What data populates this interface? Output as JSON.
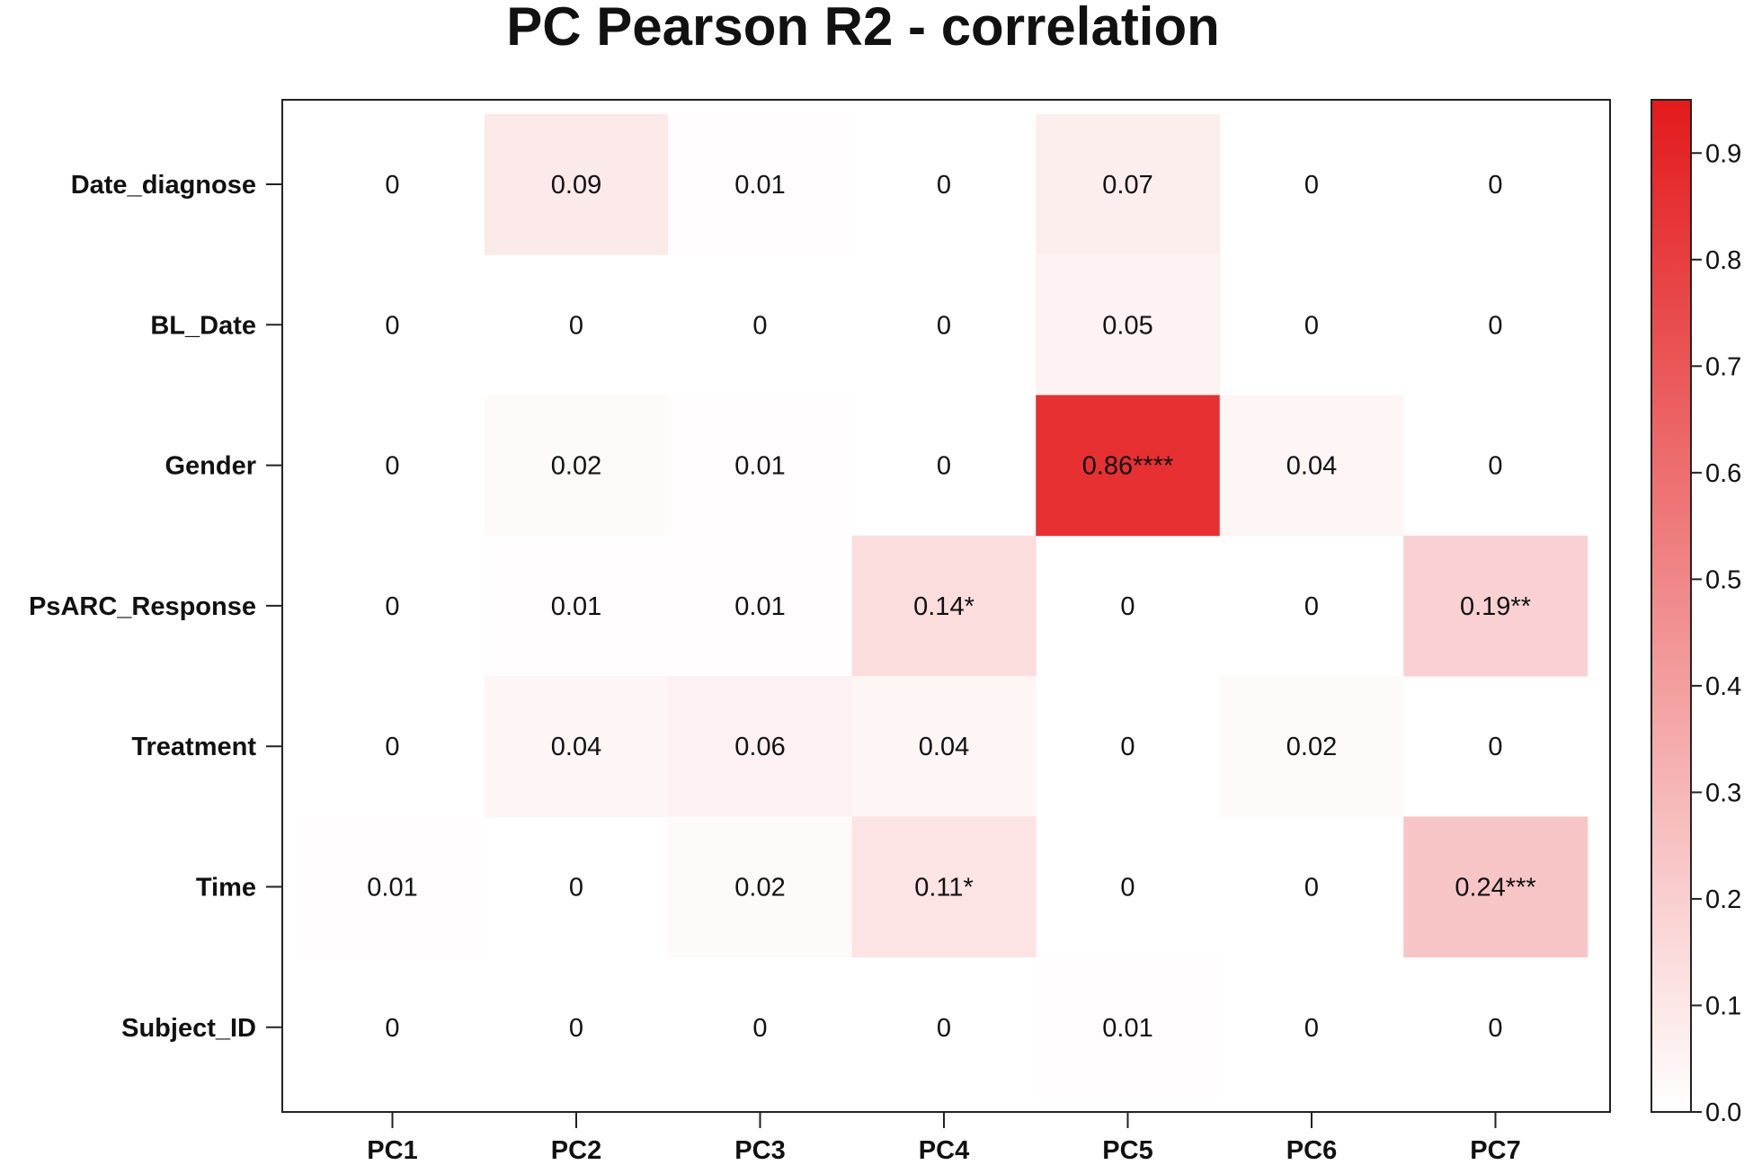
{
  "chart_data": {
    "type": "heatmap",
    "title": "PC Pearson R2 - correlation",
    "columns": [
      "PC1",
      "PC2",
      "PC3",
      "PC4",
      "PC5",
      "PC6",
      "PC7"
    ],
    "rows": [
      "Date_diagnose",
      "BL_Date",
      "Gender",
      "PsARC_Response",
      "Treatment",
      "Time",
      "Subject_ID"
    ],
    "values": [
      [
        0,
        0.09,
        0.01,
        0,
        0.07,
        0,
        0
      ],
      [
        0,
        0,
        0,
        0,
        0.05,
        0,
        0
      ],
      [
        0,
        0.02,
        0.01,
        0,
        0.86,
        0.04,
        0
      ],
      [
        0,
        0.01,
        0.01,
        0.14,
        0,
        0,
        0.19
      ],
      [
        0,
        0.04,
        0.06,
        0.04,
        0,
        0.02,
        0
      ],
      [
        0.01,
        0,
        0.02,
        0.11,
        0,
        0,
        0.24
      ],
      [
        0,
        0,
        0,
        0,
        0.01,
        0,
        0
      ]
    ],
    "labels": [
      [
        "0",
        "0.09",
        "0.01",
        "0",
        "0.07",
        "0",
        "0"
      ],
      [
        "0",
        "0",
        "0",
        "0",
        "0.05",
        "0",
        "0"
      ],
      [
        "0",
        "0.02",
        "0.01",
        "0",
        "0.86****",
        "0.04",
        "0"
      ],
      [
        "0",
        "0.01",
        "0.01",
        "0.14*",
        "0",
        "0",
        "0.19**"
      ],
      [
        "0",
        "0.04",
        "0.06",
        "0.04",
        "0",
        "0.02",
        "0"
      ],
      [
        "0.01",
        "0",
        "0.02",
        "0.11*",
        "0",
        "0",
        "0.24***"
      ],
      [
        "0",
        "0",
        "0",
        "0",
        "0.01",
        "0",
        "0"
      ]
    ],
    "colorbar": {
      "range": [
        0,
        0.95
      ],
      "ticks": [
        "0.0",
        "0.1",
        "0.2",
        "0.3",
        "0.4",
        "0.5",
        "0.6",
        "0.7",
        "0.8",
        "0.9"
      ],
      "low_color": "#ffffff",
      "high_color": "#e31a1c"
    },
    "legend_position": "right"
  }
}
